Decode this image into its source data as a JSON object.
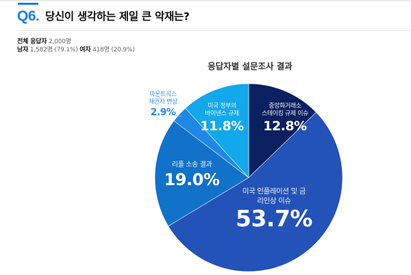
{
  "question": {
    "number": "Q6.",
    "title": "당신이 생각하는 제일 큰 악재는?"
  },
  "respondents": {
    "total_label": "전체 응답자",
    "total_value": "2,000명",
    "male_label": "남자",
    "male_value": "1,582명 (79.1%)",
    "female_label": "여자",
    "female_value": "418명 (20.9%)"
  },
  "colors": {
    "accent": "#1e7fe0",
    "slices": [
      "#0b2060",
      "#2352b8",
      "#1271c9",
      "#1f88e6",
      "#12a8ec"
    ]
  },
  "chart_data": {
    "type": "pie",
    "title": "응답자별 설문조사 결과",
    "start_angle": "12 o'clock, clockwise",
    "categories": [
      "중앙화거래소 스테이킹 규제 이슈",
      "미국 인플레이션 및 금리인상 이슈",
      "리플 소송 결과",
      "마운트곡스 채권자 변상",
      "미국 정부의 바이낸스 규제"
    ],
    "values": [
      12.8,
      53.7,
      19.0,
      2.9,
      11.8
    ],
    "unit": "%",
    "labels": [
      {
        "line1": "중앙화거래소",
        "line2": "스테이킹 규제 이슈",
        "pct": "12.8%"
      },
      {
        "line1": "미국 인플레이션 및 금",
        "line2": "리인상 이슈",
        "pct": "53.7%"
      },
      {
        "line1": "리플 소송 결과",
        "line2": "",
        "pct": "19.0%"
      },
      {
        "line1": "마운트곡스",
        "line2": "채권자 변상",
        "pct": "2.9%"
      },
      {
        "line1": "미국 정부의",
        "line2": "바이낸스 규제",
        "pct": "11.8%"
      }
    ]
  }
}
